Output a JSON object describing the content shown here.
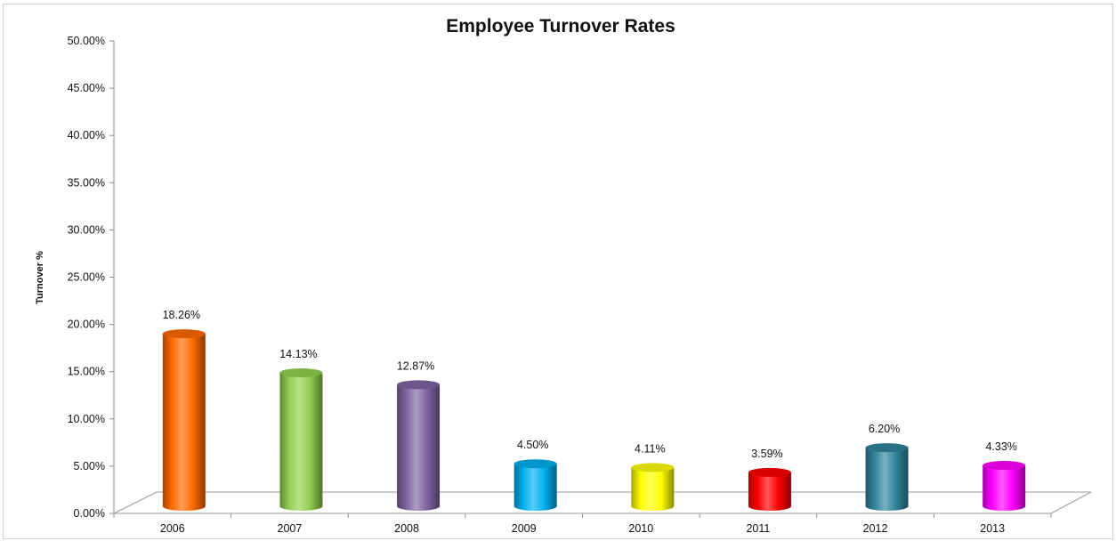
{
  "chart_data": {
    "type": "bar",
    "style": "3d-cylinder",
    "title": "Employee Turnover Rates",
    "xlabel": "",
    "ylabel": "Turnover %",
    "categories": [
      "2006",
      "2007",
      "2008",
      "2009",
      "2010",
      "2011",
      "2012",
      "2013"
    ],
    "values": [
      18.26,
      14.13,
      12.87,
      4.5,
      4.11,
      3.59,
      6.2,
      4.33
    ],
    "data_labels": [
      "18.26%",
      "14.13%",
      "12.87%",
      "4.50%",
      "4.11%",
      "3.59%",
      "6.20%",
      "4.33%"
    ],
    "colors": [
      "#ff6a00",
      "#92d050",
      "#8064a2",
      "#00b0f0",
      "#ffff00",
      "#ff0000",
      "#31859c",
      "#ff00ff"
    ],
    "ylim": [
      0,
      50
    ],
    "y_ticks": [
      "0.00%",
      "5.00%",
      "10.00%",
      "15.00%",
      "20.00%",
      "25.00%",
      "30.00%",
      "35.00%",
      "40.00%",
      "45.00%",
      "50.00%"
    ],
    "grid": false,
    "legend": "none"
  }
}
